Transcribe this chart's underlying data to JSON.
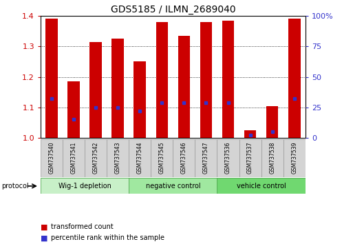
{
  "title": "GDS5185 / ILMN_2689040",
  "samples": [
    "GSM737540",
    "GSM737541",
    "GSM737542",
    "GSM737543",
    "GSM737544",
    "GSM737545",
    "GSM737546",
    "GSM737547",
    "GSM737536",
    "GSM737537",
    "GSM737538",
    "GSM737539"
  ],
  "bar_heights": [
    1.39,
    1.185,
    1.315,
    1.325,
    1.25,
    1.38,
    1.335,
    1.38,
    1.385,
    1.025,
    1.105,
    1.39
  ],
  "blue_dot_pct": [
    32,
    15,
    25,
    25,
    22,
    29,
    29,
    29,
    29,
    2,
    5,
    32
  ],
  "ylim_left": [
    1.0,
    1.4
  ],
  "ylim_right": [
    0,
    100
  ],
  "yticks_left": [
    1.0,
    1.1,
    1.2,
    1.3,
    1.4
  ],
  "yticks_right": [
    0,
    25,
    50,
    75,
    100
  ],
  "ytick_labels_right": [
    "0",
    "25",
    "50",
    "75",
    "100%"
  ],
  "grid_lines": [
    1.1,
    1.2,
    1.3
  ],
  "bar_color": "#cc0000",
  "blue_color": "#3333cc",
  "group_colors": [
    "#c8f0c8",
    "#a0e8a0",
    "#70d870"
  ],
  "groups": [
    {
      "label": "Wig-1 depletion",
      "start": 0,
      "end": 4
    },
    {
      "label": "negative control",
      "start": 4,
      "end": 8
    },
    {
      "label": "vehicle control",
      "start": 8,
      "end": 12
    }
  ],
  "protocol_label": "protocol",
  "legend_items": [
    {
      "color": "#cc0000",
      "label": "transformed count"
    },
    {
      "color": "#3333cc",
      "label": "percentile rank within the sample"
    }
  ],
  "bar_width": 0.55,
  "title_fontsize": 10,
  "tick_color_left": "#cc0000",
  "tick_color_right": "#3333cc",
  "tick_fontsize": 8,
  "sample_fontsize": 5.5,
  "group_fontsize": 7,
  "legend_fontsize": 7
}
